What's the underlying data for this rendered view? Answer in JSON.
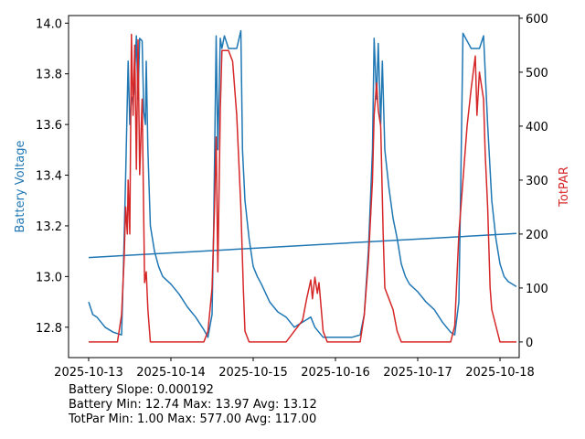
{
  "chart_data": {
    "type": "line",
    "x_ticks": [
      "2025-10-13",
      "2025-10-14",
      "2025-10-15",
      "2025-10-16",
      "2025-10-17",
      "2025-10-18"
    ],
    "x_unit": "days since 2025-10-13",
    "xlim": [
      -0.244,
      5.233
    ],
    "left_axis": {
      "label": "Battery Voltage",
      "color": "#1f77b4",
      "ylim": [
        12.68,
        14.03
      ],
      "ticks": [
        "12.8",
        "13.0",
        "13.2",
        "13.4",
        "13.6",
        "13.8",
        "14.0"
      ]
    },
    "right_axis": {
      "label": "TotPAR",
      "color": "#d62728",
      "ylim": [
        -29,
        605
      ],
      "ticks": [
        "0",
        "100",
        "200",
        "300",
        "400",
        "500",
        "600"
      ]
    },
    "series": [
      {
        "name": "Battery Voltage",
        "axis": "left",
        "color": "#1f77b4",
        "points": [
          [
            0,
            12.9
          ],
          [
            0.05,
            12.85
          ],
          [
            0.1,
            12.84
          ],
          [
            0.2,
            12.8
          ],
          [
            0.3,
            12.78
          ],
          [
            0.4,
            12.77
          ],
          [
            0.42,
            13.0
          ],
          [
            0.45,
            13.4
          ],
          [
            0.48,
            13.85
          ],
          [
            0.5,
            13.6
          ],
          [
            0.52,
            13.7
          ],
          [
            0.55,
            13.72
          ],
          [
            0.58,
            13.95
          ],
          [
            0.6,
            13.7
          ],
          [
            0.62,
            13.94
          ],
          [
            0.65,
            13.93
          ],
          [
            0.67,
            13.65
          ],
          [
            0.69,
            13.6
          ],
          [
            0.7,
            13.85
          ],
          [
            0.72,
            13.5
          ],
          [
            0.75,
            13.2
          ],
          [
            0.8,
            13.1
          ],
          [
            0.85,
            13.04
          ],
          [
            0.9,
            13.0
          ],
          [
            1.0,
            12.97
          ],
          [
            1.1,
            12.93
          ],
          [
            1.2,
            12.88
          ],
          [
            1.3,
            12.84
          ],
          [
            1.4,
            12.79
          ],
          [
            1.45,
            12.76
          ],
          [
            1.5,
            12.85
          ],
          [
            1.52,
            13.2
          ],
          [
            1.55,
            13.95
          ],
          [
            1.57,
            13.5
          ],
          [
            1.6,
            13.94
          ],
          [
            1.62,
            13.9
          ],
          [
            1.65,
            13.95
          ],
          [
            1.7,
            13.9
          ],
          [
            1.8,
            13.9
          ],
          [
            1.85,
            13.97
          ],
          [
            1.87,
            13.5
          ],
          [
            1.9,
            13.3
          ],
          [
            1.95,
            13.15
          ],
          [
            2.0,
            13.04
          ],
          [
            2.05,
            13.0
          ],
          [
            2.1,
            12.97
          ],
          [
            2.2,
            12.9
          ],
          [
            2.3,
            12.86
          ],
          [
            2.4,
            12.84
          ],
          [
            2.5,
            12.8
          ],
          [
            2.6,
            12.82
          ],
          [
            2.7,
            12.84
          ],
          [
            2.75,
            12.8
          ],
          [
            2.8,
            12.78
          ],
          [
            2.85,
            12.76
          ],
          [
            3.0,
            12.76
          ],
          [
            3.2,
            12.76
          ],
          [
            3.3,
            12.77
          ],
          [
            3.35,
            12.85
          ],
          [
            3.4,
            13.1
          ],
          [
            3.45,
            13.5
          ],
          [
            3.47,
            13.94
          ],
          [
            3.5,
            13.7
          ],
          [
            3.52,
            13.92
          ],
          [
            3.55,
            13.6
          ],
          [
            3.57,
            13.85
          ],
          [
            3.6,
            13.5
          ],
          [
            3.65,
            13.35
          ],
          [
            3.7,
            13.23
          ],
          [
            3.75,
            13.15
          ],
          [
            3.8,
            13.05
          ],
          [
            3.85,
            13.0
          ],
          [
            3.9,
            12.97
          ],
          [
            4.0,
            12.94
          ],
          [
            4.1,
            12.9
          ],
          [
            4.2,
            12.87
          ],
          [
            4.3,
            12.82
          ],
          [
            4.4,
            12.78
          ],
          [
            4.45,
            12.77
          ],
          [
            4.5,
            12.9
          ],
          [
            4.52,
            13.3
          ],
          [
            4.55,
            13.96
          ],
          [
            4.6,
            13.93
          ],
          [
            4.65,
            13.9
          ],
          [
            4.75,
            13.9
          ],
          [
            4.8,
            13.95
          ],
          [
            4.85,
            13.6
          ],
          [
            4.9,
            13.3
          ],
          [
            4.95,
            13.15
          ],
          [
            5.0,
            13.05
          ],
          [
            5.05,
            13.0
          ],
          [
            5.1,
            12.98
          ],
          [
            5.2,
            12.96
          ]
        ]
      },
      {
        "name": "Battery Trend",
        "axis": "left",
        "color": "#1f77b4",
        "points": [
          [
            0,
            13.075
          ],
          [
            5.2,
            13.17
          ]
        ]
      },
      {
        "name": "TotPAR",
        "axis": "right",
        "color": "#d62728",
        "points": [
          [
            0,
            0
          ],
          [
            0.35,
            0
          ],
          [
            0.4,
            50
          ],
          [
            0.43,
            150
          ],
          [
            0.45,
            250
          ],
          [
            0.47,
            200
          ],
          [
            0.48,
            300
          ],
          [
            0.5,
            200
          ],
          [
            0.52,
            570
          ],
          [
            0.54,
            420
          ],
          [
            0.56,
            550
          ],
          [
            0.58,
            320
          ],
          [
            0.6,
            560
          ],
          [
            0.62,
            310
          ],
          [
            0.65,
            450
          ],
          [
            0.68,
            110
          ],
          [
            0.7,
            130
          ],
          [
            0.72,
            60
          ],
          [
            0.75,
            0
          ],
          [
            1.4,
            0
          ],
          [
            1.45,
            20
          ],
          [
            1.5,
            100
          ],
          [
            1.53,
            250
          ],
          [
            1.55,
            380
          ],
          [
            1.57,
            130
          ],
          [
            1.6,
            430
          ],
          [
            1.62,
            540
          ],
          [
            1.65,
            540
          ],
          [
            1.7,
            540
          ],
          [
            1.75,
            520
          ],
          [
            1.8,
            420
          ],
          [
            1.85,
            250
          ],
          [
            1.88,
            100
          ],
          [
            1.9,
            20
          ],
          [
            1.95,
            0
          ],
          [
            2.4,
            0
          ],
          [
            2.5,
            20
          ],
          [
            2.6,
            40
          ],
          [
            2.65,
            80
          ],
          [
            2.7,
            115
          ],
          [
            2.72,
            80
          ],
          [
            2.75,
            120
          ],
          [
            2.78,
            90
          ],
          [
            2.8,
            110
          ],
          [
            2.85,
            20
          ],
          [
            2.9,
            0
          ],
          [
            3.3,
            0
          ],
          [
            3.35,
            50
          ],
          [
            3.4,
            150
          ],
          [
            3.45,
            300
          ],
          [
            3.47,
            420
          ],
          [
            3.5,
            480
          ],
          [
            3.52,
            430
          ],
          [
            3.55,
            400
          ],
          [
            3.58,
            200
          ],
          [
            3.6,
            100
          ],
          [
            3.65,
            80
          ],
          [
            3.7,
            60
          ],
          [
            3.75,
            20
          ],
          [
            3.8,
            0
          ],
          [
            4.4,
            0
          ],
          [
            4.45,
            30
          ],
          [
            4.5,
            200
          ],
          [
            4.55,
            300
          ],
          [
            4.6,
            400
          ],
          [
            4.65,
            470
          ],
          [
            4.7,
            530
          ],
          [
            4.72,
            420
          ],
          [
            4.75,
            500
          ],
          [
            4.8,
            450
          ],
          [
            4.82,
            350
          ],
          [
            4.85,
            250
          ],
          [
            4.88,
            100
          ],
          [
            4.9,
            60
          ],
          [
            5.0,
            0
          ],
          [
            5.2,
            0
          ]
        ]
      }
    ],
    "annotations": [
      "Battery Slope: 0.000192",
      "Battery Min: 12.74 Max: 13.97 Avg: 13.12",
      "TotPar Min: 1.00 Max: 577.00 Avg: 117.00"
    ]
  }
}
